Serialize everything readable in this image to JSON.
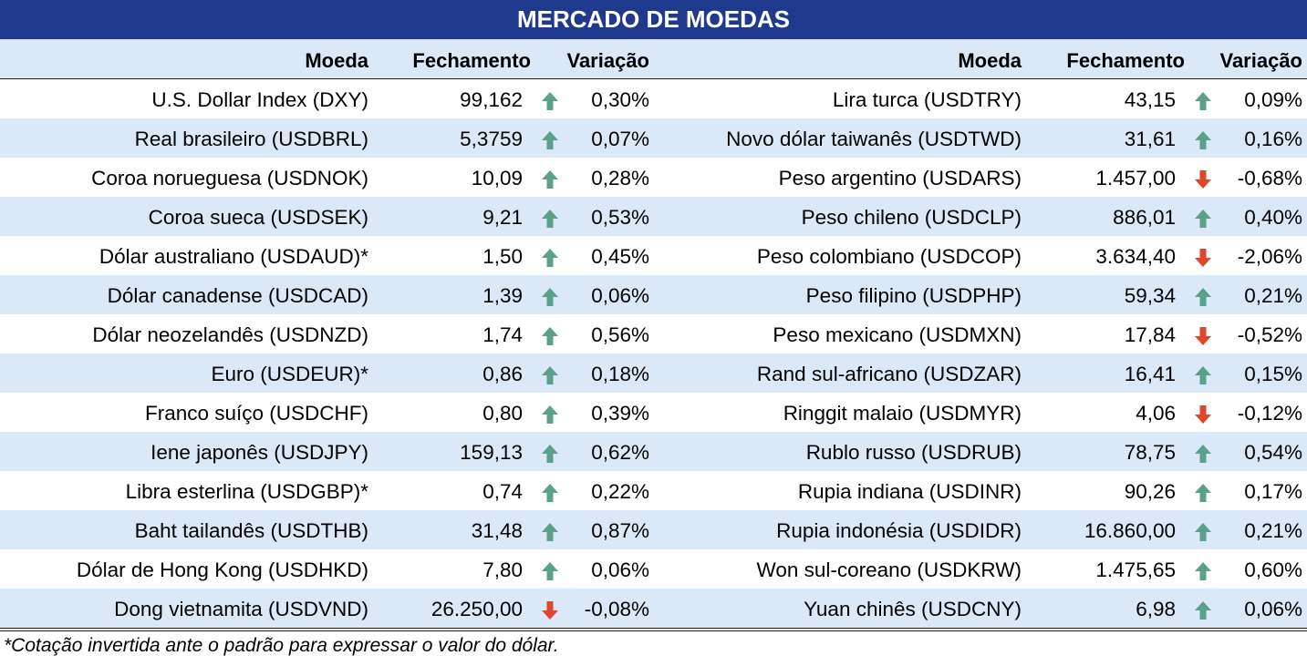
{
  "title": "MERCADO DE MOEDAS",
  "headers": {
    "moeda": "Moeda",
    "fechamento": "Fechamento",
    "variacao": "Variação"
  },
  "colors": {
    "title_bg": "#1f3a8c",
    "stripe_bg": "#dbe8f8",
    "up_arrow": "#5aa08a",
    "down_arrow": "#e0462a"
  },
  "icons": {
    "up": "arrow-up-icon",
    "down": "arrow-down-icon"
  },
  "left": [
    {
      "moeda": "U.S. Dollar Index (DXY)",
      "fechamento": "99,162",
      "direction": "up",
      "variacao": "0,30%"
    },
    {
      "moeda": "Real brasileiro (USDBRL)",
      "fechamento": "5,3759",
      "direction": "up",
      "variacao": "0,07%"
    },
    {
      "moeda": "Coroa norueguesa (USDNOK)",
      "fechamento": "10,09",
      "direction": "up",
      "variacao": "0,28%"
    },
    {
      "moeda": "Coroa sueca (USDSEK)",
      "fechamento": "9,21",
      "direction": "up",
      "variacao": "0,53%"
    },
    {
      "moeda": "Dólar australiano (USDAUD)*",
      "fechamento": "1,50",
      "direction": "up",
      "variacao": "0,45%"
    },
    {
      "moeda": "Dólar canadense (USDCAD)",
      "fechamento": "1,39",
      "direction": "up",
      "variacao": "0,06%"
    },
    {
      "moeda": "Dólar neozelandês (USDNZD)",
      "fechamento": "1,74",
      "direction": "up",
      "variacao": "0,56%"
    },
    {
      "moeda": "Euro (USDEUR)*",
      "fechamento": "0,86",
      "direction": "up",
      "variacao": "0,18%"
    },
    {
      "moeda": "Franco suíço (USDCHF)",
      "fechamento": "0,80",
      "direction": "up",
      "variacao": "0,39%"
    },
    {
      "moeda": "Iene japonês (USDJPY)",
      "fechamento": "159,13",
      "direction": "up",
      "variacao": "0,62%"
    },
    {
      "moeda": "Libra esterlina (USDGBP)*",
      "fechamento": "0,74",
      "direction": "up",
      "variacao": "0,22%"
    },
    {
      "moeda": "Baht tailandês (USDTHB)",
      "fechamento": "31,48",
      "direction": "up",
      "variacao": "0,87%"
    },
    {
      "moeda": "Dólar de Hong Kong (USDHKD)",
      "fechamento": "7,80",
      "direction": "up",
      "variacao": "0,06%"
    },
    {
      "moeda": "Dong vietnamita (USDVND)",
      "fechamento": "26.250,00",
      "direction": "down",
      "variacao": "-0,08%"
    }
  ],
  "right": [
    {
      "moeda": "Lira turca (USDTRY)",
      "fechamento": "43,15",
      "direction": "up",
      "variacao": "0,09%"
    },
    {
      "moeda": "Novo dólar taiwanês (USDTWD)",
      "fechamento": "31,61",
      "direction": "up",
      "variacao": "0,16%"
    },
    {
      "moeda": "Peso argentino (USDARS)",
      "fechamento": "1.457,00",
      "direction": "down",
      "variacao": "-0,68%"
    },
    {
      "moeda": "Peso chileno (USDCLP)",
      "fechamento": "886,01",
      "direction": "up",
      "variacao": "0,40%"
    },
    {
      "moeda": "Peso colombiano (USDCOP)",
      "fechamento": "3.634,40",
      "direction": "down",
      "variacao": "-2,06%"
    },
    {
      "moeda": "Peso filipino (USDPHP)",
      "fechamento": "59,34",
      "direction": "up",
      "variacao": "0,21%"
    },
    {
      "moeda": "Peso mexicano (USDMXN)",
      "fechamento": "17,84",
      "direction": "down",
      "variacao": "-0,52%"
    },
    {
      "moeda": "Rand sul-africano (USDZAR)",
      "fechamento": "16,41",
      "direction": "up",
      "variacao": "0,15%"
    },
    {
      "moeda": "Ringgit malaio (USDMYR)",
      "fechamento": "4,06",
      "direction": "down",
      "variacao": "-0,12%"
    },
    {
      "moeda": "Rublo russo (USDRUB)",
      "fechamento": "78,75",
      "direction": "up",
      "variacao": "0,54%"
    },
    {
      "moeda": "Rupia indiana (USDINR)",
      "fechamento": "90,26",
      "direction": "up",
      "variacao": "0,17%"
    },
    {
      "moeda": "Rupia indonésia (USDIDR)",
      "fechamento": "16.860,00",
      "direction": "up",
      "variacao": "0,21%"
    },
    {
      "moeda": "Won sul-coreano (USDKRW)",
      "fechamento": "1.475,65",
      "direction": "up",
      "variacao": "0,60%"
    },
    {
      "moeda": "Yuan chinês (USDCNY)",
      "fechamento": "6,98",
      "direction": "up",
      "variacao": "0,06%"
    }
  ],
  "footnote": "*Cotação invertida ante o padrão para expressar o valor do dólar."
}
